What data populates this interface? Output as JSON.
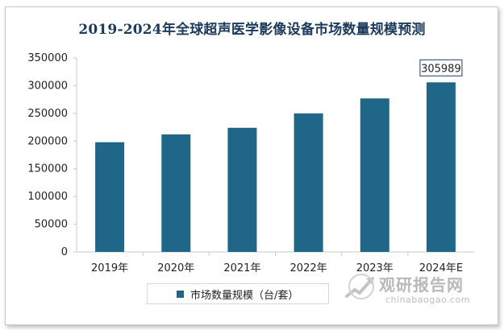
{
  "chart_data": {
    "type": "bar",
    "title": "2019-2024年全球超声医学影像设备市场数量规模预测",
    "categories": [
      "2019年",
      "2020年",
      "2021年",
      "2022年",
      "2023年",
      "2024年E"
    ],
    "series": [
      {
        "name": "市场数量规模（台/套）",
        "values": [
          198000,
          212000,
          224000,
          250000,
          277000,
          305989
        ],
        "color": "#1f6688"
      }
    ],
    "data_labels": [
      {
        "category": "2024年E",
        "text": "305989"
      }
    ],
    "yticks": [
      0,
      50000,
      100000,
      150000,
      200000,
      250000,
      300000,
      350000
    ],
    "ylim": [
      0,
      350000
    ],
    "grid": false,
    "legend": "bottom"
  },
  "watermark": {
    "brand": "观研报告网",
    "url": "chinabaogao.com"
  }
}
